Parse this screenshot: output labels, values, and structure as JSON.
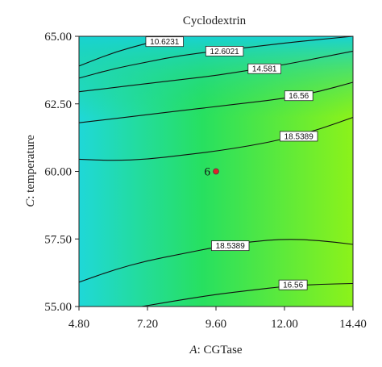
{
  "chart_data": {
    "type": "contour",
    "title": "Cyclodextrin",
    "xlabel": {
      "var": "A",
      "name": ": CGTase"
    },
    "ylabel": {
      "var": "C",
      "name": ": temperature"
    },
    "xlim": [
      4.8,
      14.4
    ],
    "ylim": [
      55.0,
      65.0
    ],
    "x_ticks": [
      "4.80",
      "7.20",
      "9.60",
      "12.00",
      "14.40"
    ],
    "y_ticks": [
      "55.00",
      "57.50",
      "60.00",
      "62.50",
      "65.00"
    ],
    "colors": {
      "low": "#1fd8d8",
      "mid": "#27e060",
      "high": "#8cf21a"
    },
    "contours": [
      {
        "label": "10.6231",
        "label_at": [
          7.8,
          64.8
        ],
        "points": [
          [
            4.8,
            63.9
          ],
          [
            6.0,
            64.4
          ],
          [
            7.2,
            64.75
          ],
          [
            8.2,
            65.0
          ]
        ]
      },
      {
        "label": "12.6021",
        "label_at": [
          9.9,
          64.45
        ],
        "points": [
          [
            4.8,
            63.45
          ],
          [
            6.0,
            63.8
          ],
          [
            7.2,
            64.05
          ],
          [
            8.4,
            64.3
          ],
          [
            9.6,
            64.45
          ],
          [
            10.8,
            64.6
          ],
          [
            12.0,
            64.75
          ],
          [
            13.2,
            64.88
          ],
          [
            14.4,
            65.0
          ]
        ]
      },
      {
        "label": "14.581",
        "label_at": [
          11.3,
          63.8
        ],
        "points": [
          [
            4.8,
            62.95
          ],
          [
            6.0,
            63.1
          ],
          [
            7.2,
            63.25
          ],
          [
            8.4,
            63.4
          ],
          [
            9.6,
            63.55
          ],
          [
            10.8,
            63.75
          ],
          [
            12.0,
            63.95
          ],
          [
            13.2,
            64.2
          ],
          [
            14.4,
            64.45
          ]
        ]
      },
      {
        "label": "16.56",
        "label_at": [
          12.5,
          62.8
        ],
        "points": [
          [
            4.8,
            61.8
          ],
          [
            6.0,
            61.95
          ],
          [
            7.2,
            62.1
          ],
          [
            8.4,
            62.25
          ],
          [
            9.6,
            62.4
          ],
          [
            10.8,
            62.55
          ],
          [
            12.0,
            62.7
          ],
          [
            13.2,
            62.95
          ],
          [
            14.4,
            63.3
          ]
        ]
      },
      {
        "label": "18.5389",
        "label_at": [
          12.5,
          61.3
        ],
        "points": [
          [
            4.8,
            60.45
          ],
          [
            6.0,
            60.4
          ],
          [
            7.2,
            60.45
          ],
          [
            8.4,
            60.6
          ],
          [
            9.6,
            60.75
          ],
          [
            10.8,
            60.95
          ],
          [
            12.0,
            61.2
          ],
          [
            13.2,
            61.55
          ],
          [
            14.4,
            62.0
          ]
        ]
      },
      {
        "label": "18.5389",
        "label_at": [
          10.1,
          57.25
        ],
        "points": [
          [
            4.8,
            55.9
          ],
          [
            6.0,
            56.35
          ],
          [
            7.2,
            56.7
          ],
          [
            8.4,
            56.95
          ],
          [
            9.6,
            57.2
          ],
          [
            10.8,
            57.4
          ],
          [
            12.0,
            57.5
          ],
          [
            13.2,
            57.45
          ],
          [
            14.4,
            57.3
          ]
        ]
      },
      {
        "label": "16.56",
        "label_at": [
          12.3,
          55.8
        ],
        "points": [
          [
            7.0,
            55.0
          ],
          [
            8.4,
            55.25
          ],
          [
            9.6,
            55.45
          ],
          [
            10.8,
            55.6
          ],
          [
            12.0,
            55.75
          ],
          [
            13.2,
            55.82
          ],
          [
            14.4,
            55.85
          ]
        ]
      }
    ],
    "center_point": {
      "x": 9.6,
      "y": 60.0,
      "label": "6"
    }
  }
}
